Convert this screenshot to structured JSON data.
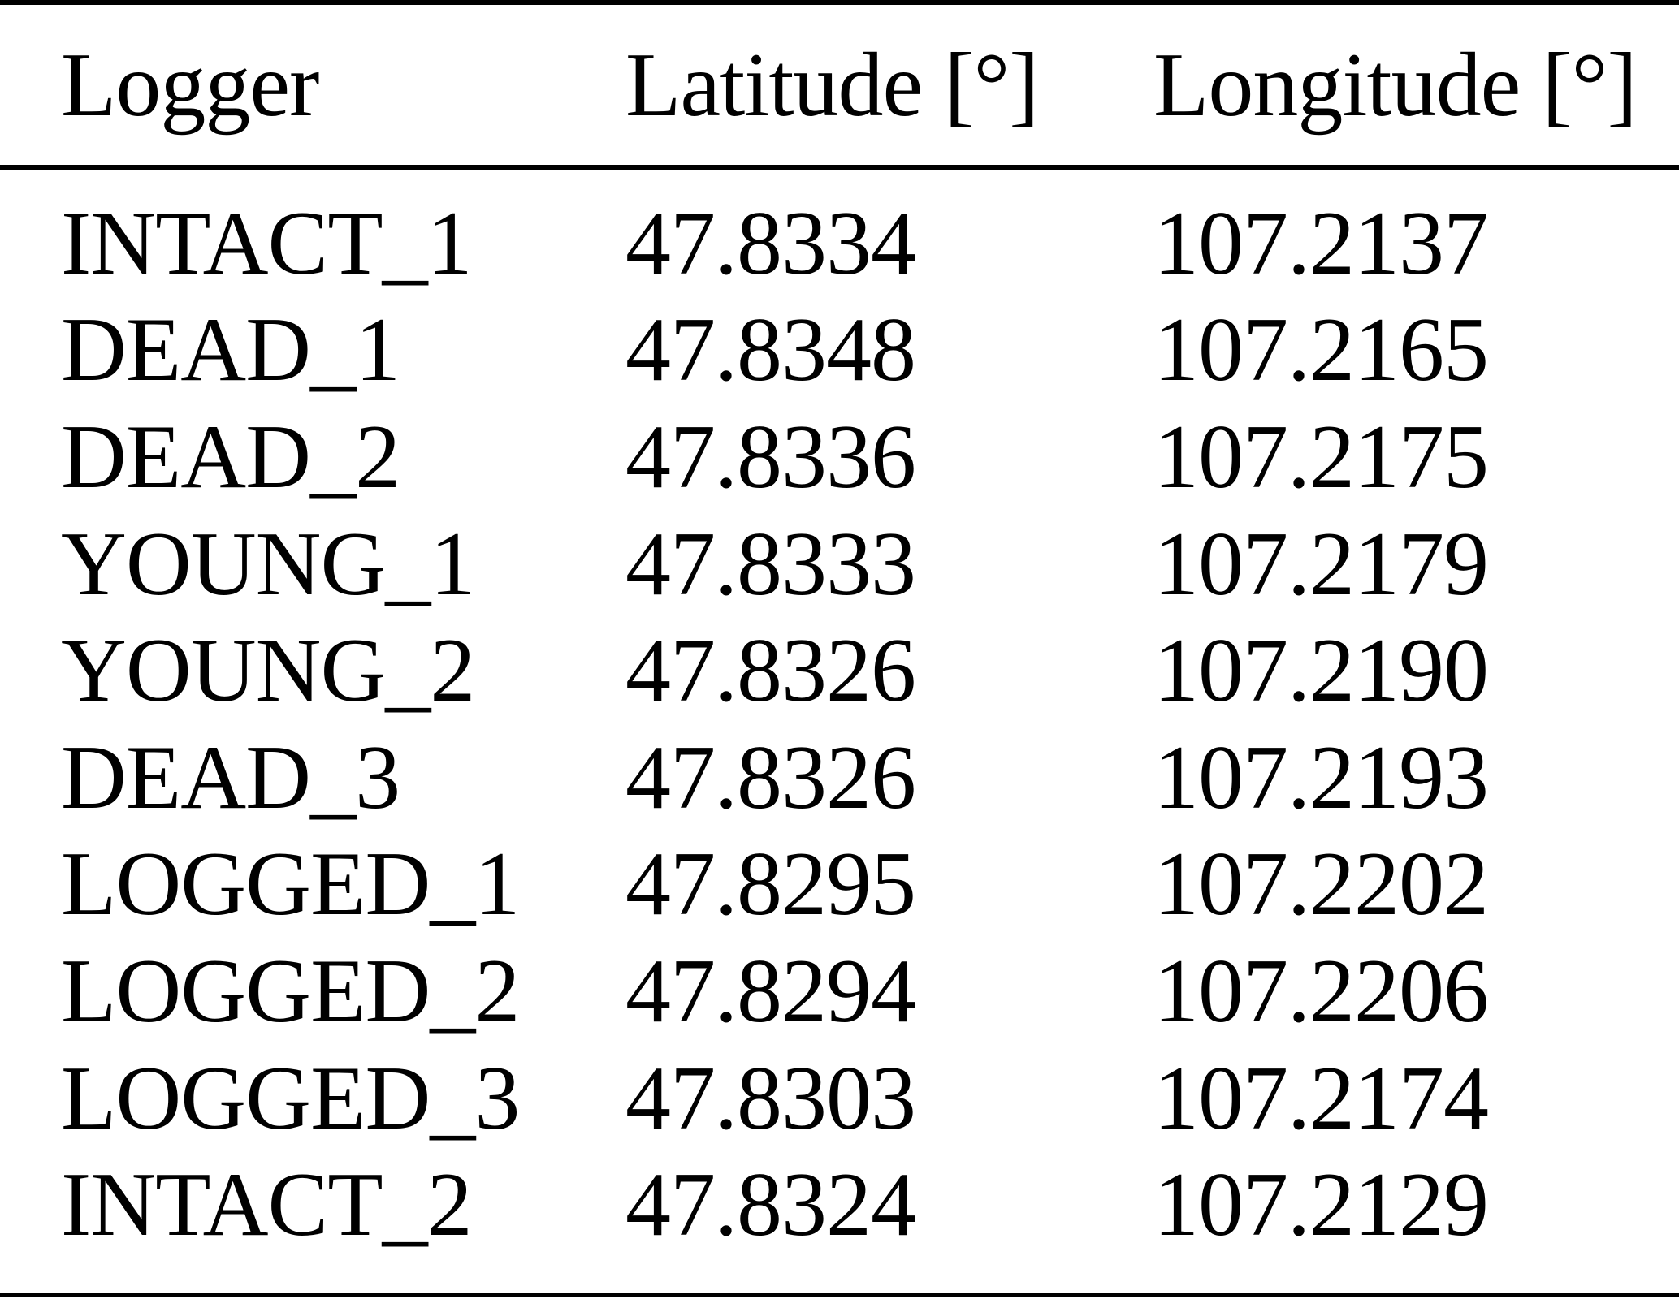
{
  "table": {
    "columns": [
      {
        "label": "Logger"
      },
      {
        "label": "Latitude [°]"
      },
      {
        "label": "Longitude [°]"
      }
    ],
    "rows": [
      {
        "logger": "INTACT_1",
        "latitude": "47.8334",
        "longitude": "107.2137"
      },
      {
        "logger": "DEAD_1",
        "latitude": "47.8348",
        "longitude": "107.2165"
      },
      {
        "logger": "DEAD_2",
        "latitude": "47.8336",
        "longitude": "107.2175"
      },
      {
        "logger": "YOUNG_1",
        "latitude": "47.8333",
        "longitude": "107.2179"
      },
      {
        "logger": "YOUNG_2",
        "latitude": "47.8326",
        "longitude": "107.2190"
      },
      {
        "logger": "DEAD_3",
        "latitude": "47.8326",
        "longitude": "107.2193"
      },
      {
        "logger": "LOGGED_1",
        "latitude": "47.8295",
        "longitude": "107.2202"
      },
      {
        "logger": "LOGGED_2",
        "latitude": "47.8294",
        "longitude": "107.2206"
      },
      {
        "logger": "LOGGED_3",
        "latitude": "47.8303",
        "longitude": "107.2174"
      },
      {
        "logger": "INTACT_2",
        "latitude": "47.8324",
        "longitude": "107.2129"
      }
    ]
  },
  "colors": {
    "text": "#000000",
    "rule": "#000000",
    "background": "#ffffff"
  }
}
